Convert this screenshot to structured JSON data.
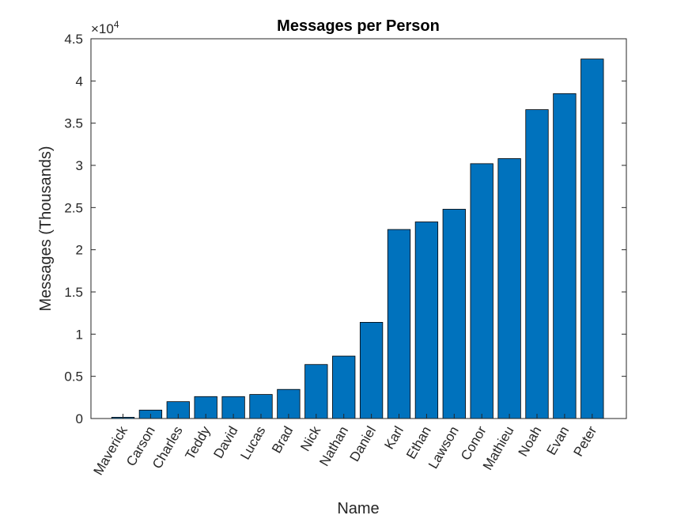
{
  "chart_data": {
    "type": "bar",
    "title": "Messages per Person",
    "xlabel": "Name",
    "ylabel": "Messages (Thousands)",
    "y_exponent_base": "×10",
    "y_exponent_power": "4",
    "ylim": [
      0,
      45000
    ],
    "yticks": [
      0,
      5000,
      10000,
      15000,
      20000,
      25000,
      30000,
      35000,
      40000,
      45000
    ],
    "ytick_labels": [
      "0",
      "0.5",
      "1",
      "1.5",
      "2",
      "2.5",
      "3",
      "3.5",
      "4",
      "4.5"
    ],
    "categories": [
      "Maverick",
      "Carson",
      "Charles",
      "Teddy",
      "David",
      "Lucas",
      "Brad",
      "Nick",
      "Nathan",
      "Daniel",
      "Karl",
      "Ethan",
      "Lawson",
      "Conor",
      "Mathieu",
      "Noah",
      "Evan",
      "Peter"
    ],
    "values": [
      150,
      1000,
      2000,
      2600,
      2600,
      2850,
      3450,
      6400,
      7400,
      11400,
      22400,
      23300,
      24800,
      30200,
      30800,
      36600,
      38500,
      42600
    ],
    "bar_color": "#0072BD",
    "grid": false,
    "legend": "none"
  }
}
